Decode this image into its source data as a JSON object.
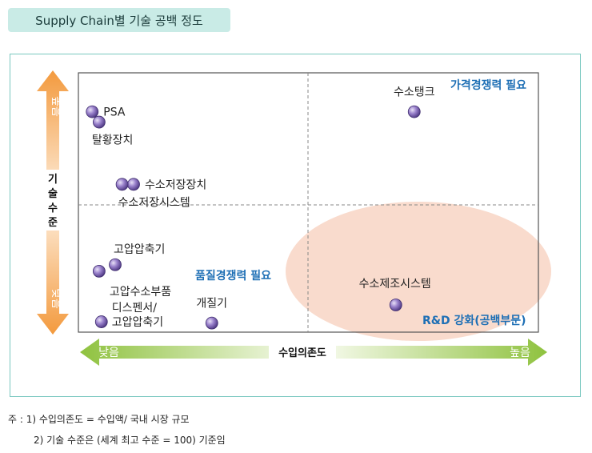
{
  "title": "Supply Chain별 기술 공백 정도",
  "chart_data": {
    "type": "scatter",
    "xlabel": "수입의존도",
    "ylabel": "기술수준",
    "x_low": "낮음",
    "x_high": "높음",
    "y_low": "낮음",
    "y_high": "높음",
    "xlim": [
      0,
      100
    ],
    "ylim": [
      0,
      100
    ],
    "points": [
      {
        "label": "PSA",
        "x": 3,
        "y": 85
      },
      {
        "label": "탈황장치",
        "x": 4.5,
        "y": 81
      },
      {
        "label": "수소저장장치",
        "x": 12,
        "y": 57
      },
      {
        "label": "수소저장시스템",
        "x": 9.5,
        "y": 57
      },
      {
        "label": "고압압축기",
        "x": 8,
        "y": 26
      },
      {
        "label": "고압수소부품",
        "x": 4.5,
        "y": 23.5
      },
      {
        "label": "디스펜서/\n고압압축기",
        "x": 5,
        "y": 4
      },
      {
        "label": "개질기",
        "x": 29,
        "y": 3.5
      },
      {
        "label": "수소탱크",
        "x": 73,
        "y": 85
      },
      {
        "label": "수소제조시스템",
        "x": 69,
        "y": 10.5
      }
    ],
    "annotations": [
      {
        "text": "가격경쟁력 필요",
        "quadrant": "top-right"
      },
      {
        "text": "품질경쟁력 필요",
        "quadrant": "bottom-left"
      },
      {
        "text": "R&D 강화(공백부문)",
        "quadrant": "bottom-right"
      }
    ],
    "colors": {
      "point": "#7b5fb0",
      "x_arrow": "#8fc23f",
      "y_arrow": "#f08a2a",
      "highlight": "#f7c9b5",
      "annotation": "#1e6fb5"
    }
  },
  "notes": [
    "주 : 1) 수입의존도 = 수입액/ 국내 시장 규모",
    "2) 기술 수준은 (세계 최고 수준 = 100) 기준임"
  ]
}
